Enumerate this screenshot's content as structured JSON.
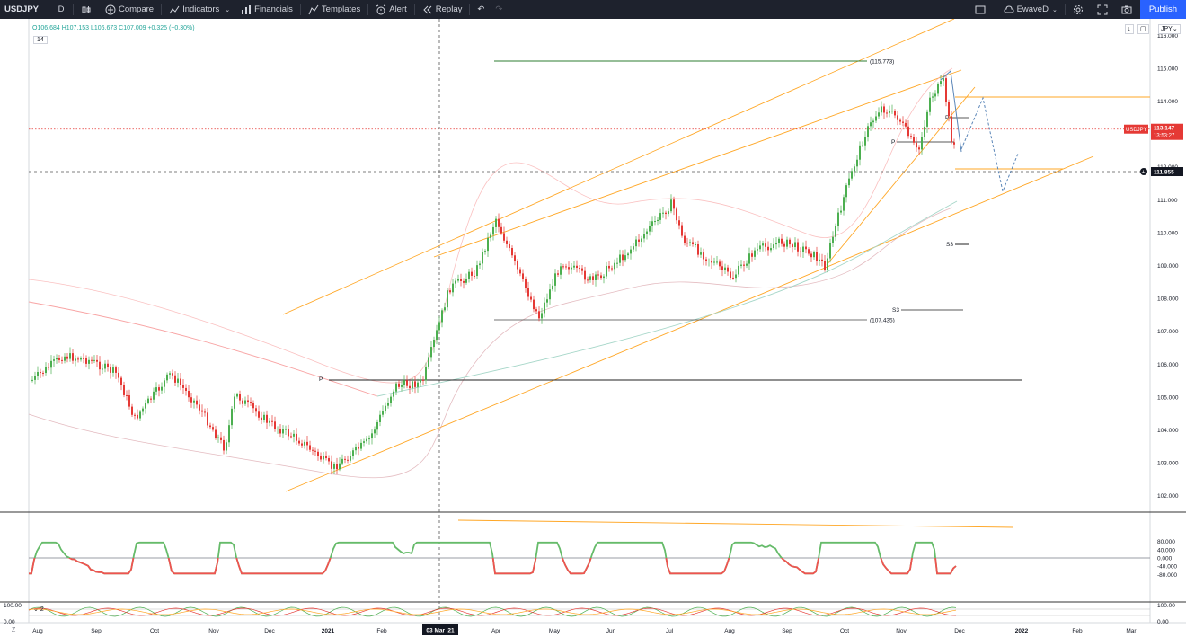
{
  "toolbar": {
    "symbol": "USDJPY",
    "interval": "D",
    "compare_label": "Compare",
    "indicators_label": "Indicators",
    "financials_label": "Financials",
    "templates_label": "Templates",
    "alert_label": "Alert",
    "replay_label": "Replay",
    "layout_name": "EwaveD",
    "publish_label": "Publish"
  },
  "legend": {
    "ohlc": "O106.684 H107.153 L106.673 C107.009 +0.325 (+0.30%)",
    "period": "14",
    "indicator_badge": "2",
    "currency": "JPY"
  },
  "chart_data": {
    "type": "candlestick",
    "symbol": "USDJPY",
    "ylim": [
      101.5,
      116.5
    ],
    "price_axis_ticks": [
      "116.000",
      "115.000",
      "114.000",
      "113.000",
      "112.000",
      "111.000",
      "110.000",
      "109.000",
      "108.000",
      "107.000",
      "106.000",
      "105.000",
      "104.000",
      "103.000",
      "102.000"
    ],
    "time_axis_labels": [
      "Aug",
      "Sep",
      "Oct",
      "Nov",
      "Dec",
      "2021",
      "Feb",
      "03 Mar '21",
      "Apr",
      "May",
      "Jun",
      "Jul",
      "Aug",
      "Sep",
      "Oct",
      "Nov",
      "Dec",
      "2022",
      "Feb",
      "Mar"
    ],
    "current_price_tag": {
      "label": "USDJPY",
      "value": "113.147",
      "countdown": "13:53:27"
    },
    "crosshair_price": "111.855",
    "crosshair_date": "03 Mar '21",
    "annotations": {
      "high_level": "(115.773)",
      "low_level": "(107.435)",
      "s3_upper": "S3",
      "s3_lower": "S3",
      "pivot_left": "P",
      "pivot_right": "P",
      "pivot_mid": "P"
    },
    "oscillator_ticks": [
      "80.000",
      "40.000",
      "0.000",
      "-40.000",
      "-80.000"
    ],
    "lower_pane_ticks": [
      "100.00",
      "0.00"
    ],
    "lower_pane_left_ticks": [
      "100.00",
      "0.00"
    ],
    "colors": {
      "up": "#4caf50",
      "down": "#e53935",
      "channel": "#ffa726",
      "projection": "#5b86b8",
      "band": "#f8a5a5",
      "ma": "#a5d6c8",
      "price_line": "#e53935"
    }
  },
  "bottom": {
    "zoom_label": "Z"
  }
}
